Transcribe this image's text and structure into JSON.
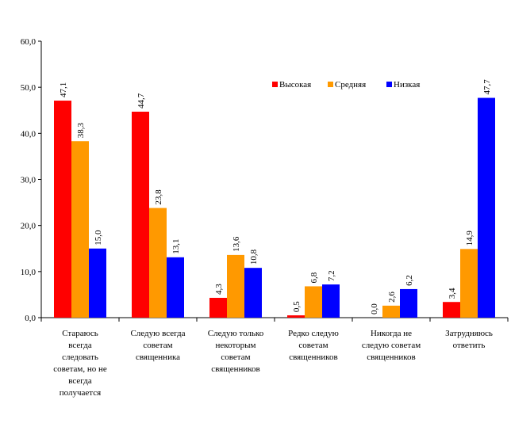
{
  "chart_data": {
    "type": "bar",
    "title": "",
    "xlabel": "",
    "ylabel": "",
    "ylim": [
      0,
      60
    ],
    "yticks": [
      "0,0",
      "10,0",
      "20,0",
      "30,0",
      "40,0",
      "50,0",
      "60,0"
    ],
    "categories": [
      [
        "Стараюсь",
        "всегда",
        "следовать",
        "советам, но не",
        "всегда",
        "получается"
      ],
      [
        "Следую всегда",
        "советам",
        "священника"
      ],
      [
        "Следую только",
        "некоторым",
        "советам",
        "священников"
      ],
      [
        "Редко следую",
        "советам",
        "священников"
      ],
      [
        "Никогда не",
        "следую советам",
        "священников"
      ],
      [
        "Затрудняюсь",
        "ответить"
      ]
    ],
    "series": [
      {
        "name": "Высокая",
        "color": "#ff0000",
        "values": [
          47.1,
          44.7,
          4.3,
          0.5,
          0.0,
          3.4
        ],
        "labels": [
          "47,1",
          "44,7",
          "4,3",
          "0,5",
          "0,0",
          "3,4"
        ]
      },
      {
        "name": "Средняя",
        "color": "#ff9900",
        "values": [
          38.3,
          23.8,
          13.6,
          6.8,
          2.6,
          14.9
        ],
        "labels": [
          "38,3",
          "23,8",
          "13,6",
          "6,8",
          "2,6",
          "14,9"
        ]
      },
      {
        "name": "Низкая",
        "color": "#0000ff",
        "values": [
          15.0,
          13.1,
          10.8,
          7.2,
          6.2,
          47.7
        ],
        "labels": [
          "15,0",
          "13,1",
          "10,8",
          "7,2",
          "6,2",
          "47,7"
        ]
      }
    ],
    "legend_position": "top-right"
  }
}
